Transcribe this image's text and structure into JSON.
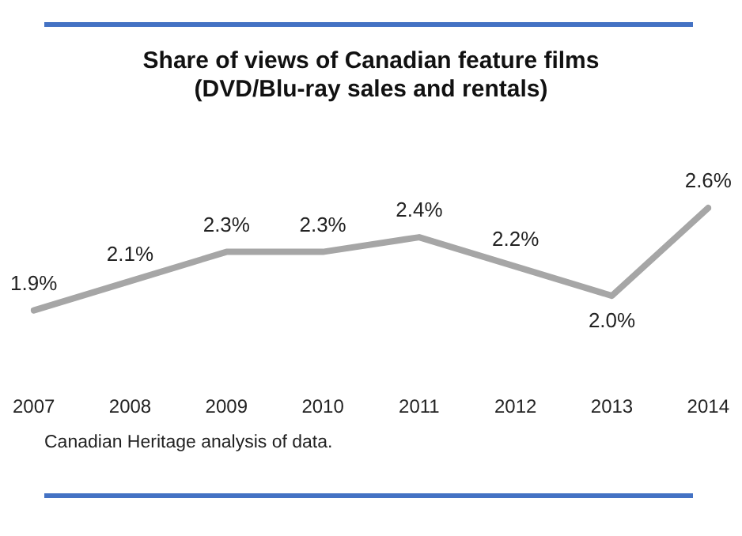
{
  "chart_data": {
    "type": "line",
    "title": [
      "Share of views of Canadian feature films",
      "(DVD/Blu-ray sales and rentals)"
    ],
    "categories": [
      "2007",
      "2008",
      "2009",
      "2010",
      "2011",
      "2012",
      "2013",
      "2014"
    ],
    "series": [
      {
        "color": "#a6a6a6",
        "values": [
          1.9,
          2.1,
          2.3,
          2.3,
          2.4,
          2.2,
          2.0,
          2.6
        ],
        "value_labels": [
          "1.9%",
          "2.1%",
          "2.3%",
          "2.3%",
          "2.4%",
          "2.2%",
          "2.0%",
          "2.6%"
        ]
      }
    ],
    "marker": "none",
    "line_style": "solid",
    "legend": false,
    "grid": false,
    "annotations": [
      "Canadian Heritage analysis of data."
    ]
  }
}
